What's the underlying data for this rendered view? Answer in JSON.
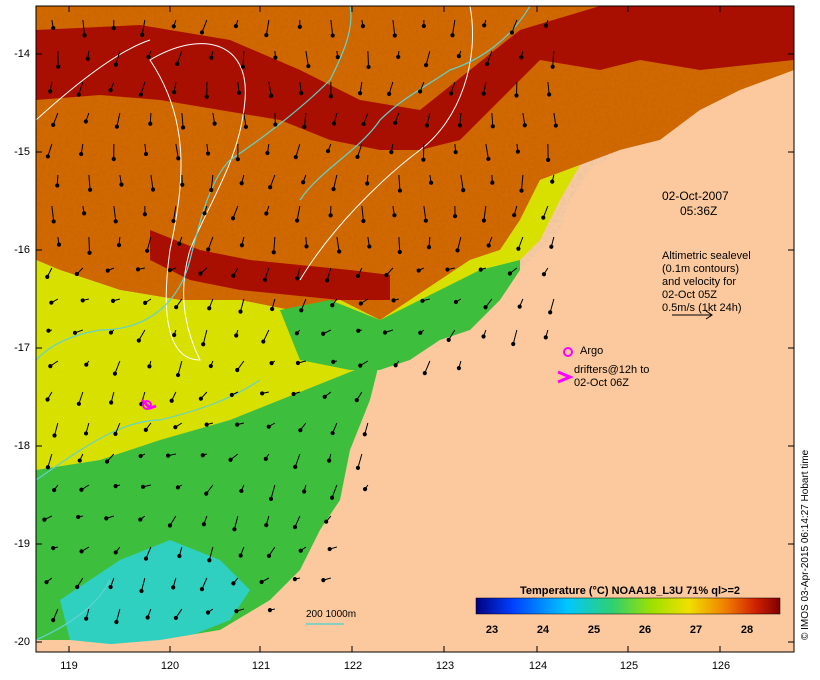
{
  "map": {
    "y_ticks": [
      "-14",
      "-15",
      "-16",
      "-17",
      "-18",
      "-19",
      "-20"
    ],
    "x_ticks": [
      "119",
      "120",
      "121",
      "122",
      "123",
      "124",
      "125",
      "126"
    ],
    "date_label": "02-Oct-2007",
    "time_label": "05:36Z",
    "altimetry_note": [
      "Altimetric sealevel",
      "(0.1m contours)",
      "and velocity for",
      "02-Oct 05Z",
      "0.5m/s (1kt 24h)"
    ],
    "argo_label": "Argo",
    "drifters_note": [
      "drifters@12h to",
      "02-Oct 06Z"
    ],
    "depth_contour_label": "200  1000m",
    "colorbar_title": "Temperature (°C) NOAA18_L3U 71% ql>=2",
    "colorbar_ticks": [
      "23",
      "24",
      "25",
      "26",
      "27",
      "28"
    ],
    "copyright": "© IMOS 03-Apr-2015 06:14:27 Hobart time",
    "colors": {
      "land": "#fbc99d",
      "warm_dark": "#a80f00",
      "warm": "#d46a00",
      "mid": "#e6b800",
      "yellow": "#d8e000",
      "green": "#3dbf3d",
      "cyan": "#2fd0c0",
      "isobath": "#5fd3cf",
      "sealevel_contour": "#ffffff",
      "argo_drifter": "#ff00ff"
    }
  }
}
